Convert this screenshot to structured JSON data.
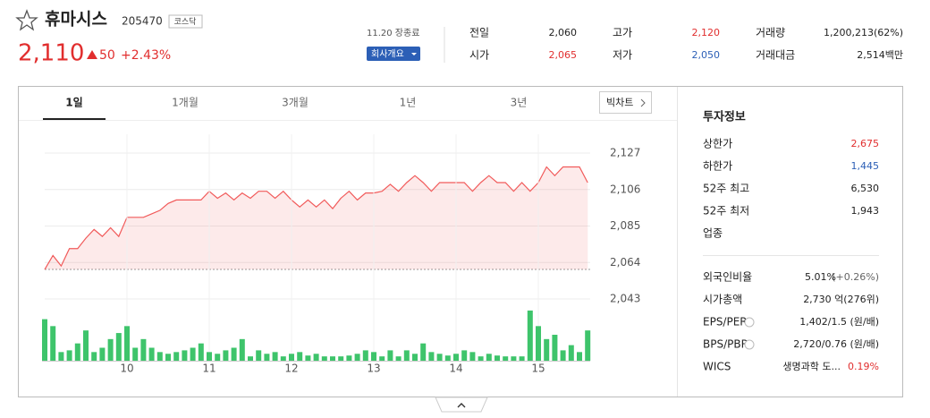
{
  "header": {
    "name": "휴마시스",
    "code": "205470",
    "market": "코스닥",
    "price": "2,110",
    "change": "50",
    "change_pct": "+2.43%",
    "time": "11.20 장종료",
    "company_button": "회사개요"
  },
  "summary": [
    [
      "전일",
      "2,060"
    ],
    [
      "고가",
      "2,120"
    ],
    [
      "거래량",
      "1,200,213(62%)"
    ],
    [
      "시가",
      "2,065"
    ],
    [
      "저가",
      "2,050"
    ],
    [
      "거래대금",
      "2,514백만"
    ]
  ],
  "tabs": [
    "1일",
    "1개월",
    "3개월",
    "1년",
    "3년"
  ],
  "big_chart": "빅차트",
  "chart_data": [
    {
      "type": "line",
      "color": "#f15a5a",
      "reference": 2060,
      "categories": [
        null,
        null,
        null,
        null,
        null,
        null,
        null,
        null,
        null,
        null,
        "10",
        null,
        null,
        null,
        null,
        null,
        null,
        null,
        null,
        null,
        "11",
        null,
        null,
        null,
        null,
        null,
        null,
        null,
        null,
        null,
        "12",
        null,
        null,
        null,
        null,
        null,
        null,
        null,
        null,
        null,
        "13",
        null,
        null,
        null,
        null,
        null,
        null,
        null,
        null,
        null,
        "14",
        null,
        null,
        null,
        null,
        null,
        null,
        null,
        null,
        null,
        "15",
        null,
        null,
        null,
        null,
        null,
        null
      ],
      "values": [
        2060,
        2068,
        2062,
        2072,
        2072,
        2078,
        2083,
        2079,
        2084,
        2079,
        2090,
        2090,
        2090,
        2092,
        2094,
        2098,
        2100,
        2100,
        2100,
        2100,
        2105,
        2101,
        2104,
        2100,
        2104,
        2101,
        2105,
        2105,
        2101,
        2105,
        2100,
        2096,
        2100,
        2096,
        2100,
        2095,
        2101,
        2105,
        2100,
        2104,
        2104,
        2105,
        2109,
        2105,
        2110,
        2114,
        2110,
        2105,
        2110,
        2110,
        2110,
        2110,
        2105,
        2110,
        2114,
        2110,
        2110,
        2105,
        2110,
        2105,
        2110,
        2119,
        2114,
        2119,
        2119,
        2119,
        2110
      ],
      "ylim": [
        2043,
        2127
      ],
      "yticks": [
        {
          "value": 2127,
          "label": "2,127"
        },
        {
          "value": 2106,
          "label": "2,106"
        },
        {
          "value": 2085,
          "label": "2,085"
        },
        {
          "value": 2064,
          "label": "2,064"
        },
        {
          "value": 2043,
          "label": "2,043"
        }
      ],
      "grid": true
    },
    {
      "type": "bar",
      "color": "#3ec46b",
      "ylim": [
        0,
        60
      ],
      "values": [
        48,
        40,
        10,
        12,
        20,
        35,
        10,
        15,
        25,
        32,
        40,
        15,
        25,
        15,
        10,
        8,
        10,
        12,
        15,
        20,
        10,
        8,
        12,
        15,
        25,
        5,
        12,
        8,
        10,
        5,
        8,
        10,
        6,
        8,
        5,
        5,
        5,
        6,
        8,
        12,
        10,
        5,
        12,
        5,
        12,
        8,
        20,
        10,
        8,
        6,
        8,
        12,
        10,
        5,
        8,
        6,
        5,
        5,
        5,
        58,
        40,
        25,
        30,
        12,
        18,
        10,
        35
      ]
    }
  ],
  "invest": {
    "title": "투자정보",
    "rows": [
      [
        "상한가",
        "2,675"
      ],
      [
        "하한가",
        "1,445"
      ],
      [
        "52주 최고",
        "6,530"
      ],
      [
        "52주 최저",
        "1,943"
      ],
      [
        "업종"
      ],
      [
        "외국인비율",
        "5.01%",
        "(+0.26%)"
      ],
      [
        "시가총액",
        "2,730 억(276위)"
      ],
      [
        "EPS/PER",
        "1,402/1.5 (원/배)"
      ],
      [
        "BPS/PBR",
        "2,720/0.76 (원/배)"
      ],
      [
        "WICS",
        "생명과학 도...",
        "0.19%"
      ]
    ]
  }
}
